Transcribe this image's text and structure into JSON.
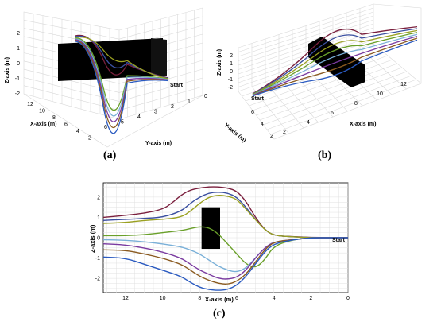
{
  "chart_data": [
    {
      "panel": "(a)",
      "type": "line",
      "view": "3d",
      "xlabel": "X-axis (m)",
      "ylabel": "Y-axis (m)",
      "zlabel": "Z-axis (m)",
      "x_ticks": [
        "12",
        "10",
        "8",
        "6",
        "4",
        "2"
      ],
      "y_ticks": [
        "6",
        "5",
        "4",
        "3",
        "2",
        "1",
        "0"
      ],
      "z_ticks": [
        "2",
        "1",
        "0",
        "-1",
        "-2"
      ],
      "annotation": "Start",
      "grid": true
    },
    {
      "panel": "(b)",
      "type": "line",
      "view": "3d",
      "xlabel": "X-axis (m)",
      "ylabel": "Y-axis (m)",
      "zlabel": "Z-axis (m)",
      "x_ticks": [
        "2",
        "4",
        "6",
        "8",
        "10",
        "12"
      ],
      "y_ticks": [
        "6",
        "4",
        "2"
      ],
      "z_ticks": [
        "2",
        "1",
        "0",
        "-1",
        "-2"
      ],
      "annotation": "Start",
      "grid": true
    },
    {
      "panel": "(c)",
      "type": "line",
      "xlabel": "X-axis (m)",
      "ylabel": "Z-axis (m)",
      "x_ticks": [
        "12",
        "10",
        "8",
        "6",
        "4",
        "2",
        "0"
      ],
      "y_ticks": [
        "2",
        "1",
        "0",
        "-1",
        "-2"
      ],
      "xlim": [
        13.2,
        0
      ],
      "ylim": [
        -2.7,
        2.7
      ],
      "annotation": "Start",
      "obstacle": {
        "x": [
          6.9,
          7.9
        ],
        "z": [
          -0.55,
          1.5
        ],
        "color": "#000000"
      },
      "grid": true,
      "series": [
        {
          "color": "#7a1f3d",
          "x": [
            13.2,
            12,
            11,
            10,
            9.5,
            9,
            8.5,
            8,
            7.5,
            7,
            6.5,
            6,
            5.5,
            5,
            4.5,
            4,
            3,
            2,
            1,
            0
          ],
          "z": [
            1.0,
            1.1,
            1.2,
            1.4,
            1.7,
            2.1,
            2.35,
            2.45,
            2.5,
            2.5,
            2.45,
            2.3,
            1.8,
            1.0,
            0.4,
            0.1,
            0.05,
            0.02,
            0.0,
            0.0
          ]
        },
        {
          "color": "#3a4fa0",
          "x": [
            13.2,
            12,
            11,
            10,
            9,
            8.5,
            8,
            7.5,
            7,
            6.5,
            6,
            5.5,
            5,
            4.5,
            4,
            3,
            2,
            1,
            0
          ],
          "z": [
            0.85,
            0.9,
            0.95,
            1.0,
            1.3,
            1.7,
            2.0,
            2.2,
            2.25,
            2.2,
            2.0,
            1.5,
            0.9,
            0.4,
            0.1,
            0.05,
            0.0,
            0.0,
            0.0
          ]
        },
        {
          "color": "#9aa020",
          "x": [
            13.2,
            12,
            11,
            10,
            9,
            8.5,
            8,
            7.5,
            7,
            6.5,
            6,
            5.5,
            5,
            4.5,
            4,
            3,
            2,
            1,
            0
          ],
          "z": [
            0.7,
            0.75,
            0.85,
            0.9,
            1.0,
            1.3,
            1.7,
            2.0,
            2.1,
            2.05,
            1.9,
            1.4,
            0.9,
            0.4,
            0.1,
            0.05,
            0.0,
            0.0,
            0.0
          ]
        },
        {
          "color": "#6aa02a",
          "x": [
            13.2,
            12,
            11,
            10,
            9,
            8.5,
            8,
            7.5,
            7,
            6.5,
            6,
            5.5,
            5,
            4.5,
            4,
            3,
            2,
            1,
            0
          ],
          "z": [
            0.1,
            0.1,
            0.15,
            0.25,
            0.35,
            0.45,
            0.55,
            0.5,
            0.2,
            -0.3,
            -0.8,
            -1.3,
            -1.5,
            -1.1,
            -0.4,
            -0.1,
            0.0,
            0.0,
            0.0
          ]
        },
        {
          "color": "#7ab0d8",
          "x": [
            13.2,
            12,
            11,
            10,
            9,
            8.5,
            8,
            7.5,
            7,
            6.5,
            6,
            5.5,
            5,
            4.5,
            4,
            3,
            2,
            1,
            0
          ],
          "z": [
            -0.1,
            -0.12,
            -0.2,
            -0.3,
            -0.45,
            -0.6,
            -0.8,
            -1.1,
            -1.4,
            -1.6,
            -1.7,
            -1.5,
            -1.0,
            -0.5,
            -0.2,
            -0.1,
            0.0,
            0.0,
            0.0
          ]
        },
        {
          "color": "#7a3aa0",
          "x": [
            13.2,
            12,
            11,
            10,
            9,
            8.5,
            8,
            7.5,
            7,
            6.5,
            6,
            5.5,
            5,
            4.5,
            4,
            3,
            2,
            1,
            0
          ],
          "z": [
            -0.3,
            -0.35,
            -0.5,
            -0.7,
            -1.0,
            -1.3,
            -1.6,
            -1.8,
            -2.0,
            -2.05,
            -1.95,
            -1.6,
            -1.0,
            -0.5,
            -0.2,
            -0.1,
            0.0,
            0.0,
            0.0
          ]
        },
        {
          "color": "#8a5a20",
          "x": [
            13.2,
            12,
            11,
            10,
            9,
            8.5,
            8,
            7.5,
            7,
            6.5,
            6,
            5.5,
            5,
            4.5,
            4,
            3,
            2,
            1,
            0
          ],
          "z": [
            -0.6,
            -0.62,
            -0.8,
            -1.0,
            -1.3,
            -1.6,
            -1.9,
            -2.1,
            -2.25,
            -2.3,
            -2.15,
            -1.8,
            -1.2,
            -0.6,
            -0.2,
            -0.1,
            0.0,
            0.0,
            0.0
          ]
        },
        {
          "color": "#2a5ac0",
          "x": [
            13.2,
            12,
            11,
            10,
            9,
            8.5,
            8,
            7.5,
            7,
            6.5,
            6,
            5.5,
            5,
            4.5,
            4,
            3,
            2,
            1,
            0
          ],
          "z": [
            -0.95,
            -1.0,
            -1.3,
            -1.6,
            -1.9,
            -2.2,
            -2.45,
            -2.55,
            -2.6,
            -2.55,
            -2.35,
            -1.9,
            -1.3,
            -0.7,
            -0.3,
            -0.1,
            0.0,
            0.0,
            0.0
          ]
        }
      ]
    }
  ],
  "panels": {
    "a": "(a)",
    "b": "(b)",
    "c": "(c)"
  }
}
